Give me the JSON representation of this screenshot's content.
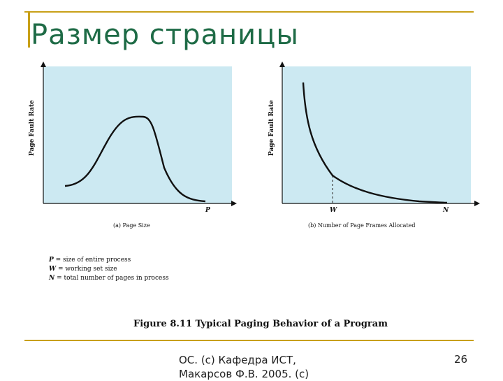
{
  "slide": {
    "title": "Размер страницы",
    "footer": "ОС. (с) Кафедра ИСТ, Макарсов Ф.В. 2005. (с)",
    "page_number": "26",
    "accent_color": "#c8a018",
    "title_color": "#1e6b46"
  },
  "figure": {
    "panel_color": "#cce9f2",
    "curve_color": "#111111",
    "left_panel": {
      "ylabel": "Page Fault Rate",
      "xlabel": "(a) Page Size",
      "x_marker": "P"
    },
    "right_panel": {
      "ylabel": "Page Fault Rate",
      "xlabel": "(b) Number of Page Frames Allocated",
      "x_marker_w": "W",
      "x_marker_n": "N"
    },
    "legend": [
      {
        "symbol": "P",
        "text": " = size of entire process"
      },
      {
        "symbol": "W",
        "text": " = working set size"
      },
      {
        "symbol": "N",
        "text": " = total number of pages in process"
      }
    ],
    "caption": "Figure 8.11  Typical Paging Behavior of a Program"
  }
}
